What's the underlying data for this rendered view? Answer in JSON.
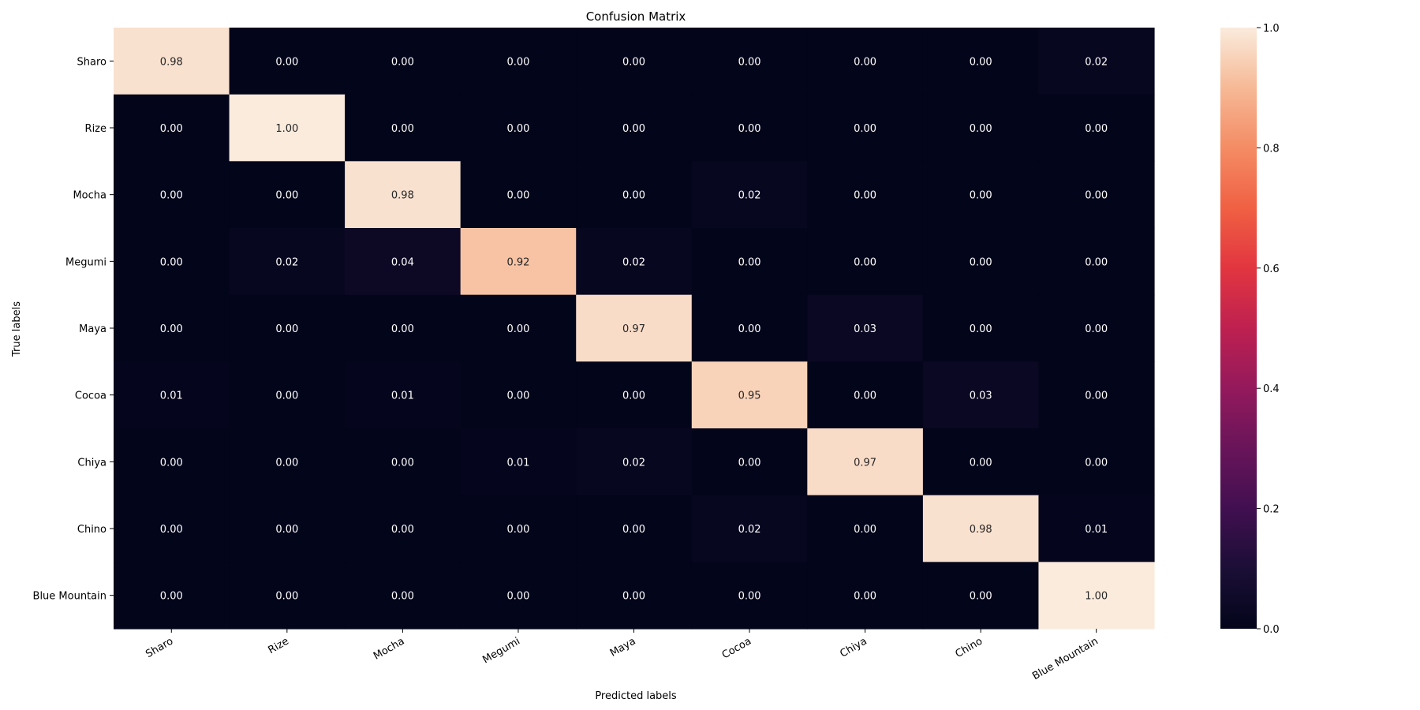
{
  "chart_data": {
    "type": "heatmap",
    "title": "Confusion Matrix",
    "xlabel": "Predicted labels",
    "ylabel": "True labels",
    "x_categories": [
      "Sharo",
      "Rize",
      "Mocha",
      "Megumi",
      "Maya",
      "Cocoa",
      "Chiya",
      "Chino",
      "Blue Mountain"
    ],
    "y_categories": [
      "Sharo",
      "Rize",
      "Mocha",
      "Megumi",
      "Maya",
      "Cocoa",
      "Chiya",
      "Chino",
      "Blue Mountain"
    ],
    "values": [
      [
        0.98,
        0.0,
        0.0,
        0.0,
        0.0,
        0.0,
        0.0,
        0.0,
        0.02
      ],
      [
        0.0,
        1.0,
        0.0,
        0.0,
        0.0,
        0.0,
        0.0,
        0.0,
        0.0
      ],
      [
        0.0,
        0.0,
        0.98,
        0.0,
        0.0,
        0.02,
        0.0,
        0.0,
        0.0
      ],
      [
        0.0,
        0.02,
        0.04,
        0.92,
        0.02,
        0.0,
        0.0,
        0.0,
        0.0
      ],
      [
        0.0,
        0.0,
        0.0,
        0.0,
        0.97,
        0.0,
        0.03,
        0.0,
        0.0
      ],
      [
        0.01,
        0.0,
        0.01,
        0.0,
        0.0,
        0.95,
        0.0,
        0.03,
        0.0
      ],
      [
        0.0,
        0.0,
        0.0,
        0.01,
        0.02,
        0.0,
        0.97,
        0.0,
        0.0
      ],
      [
        0.0,
        0.0,
        0.0,
        0.0,
        0.0,
        0.02,
        0.0,
        0.98,
        0.01
      ],
      [
        0.0,
        0.0,
        0.0,
        0.0,
        0.0,
        0.0,
        0.0,
        0.0,
        1.0
      ]
    ],
    "value_format": "2 decimals",
    "colormap": "rocket",
    "colorbar": {
      "range": [
        0.0,
        1.0
      ],
      "ticks": [
        "0.0",
        "0.2",
        "0.4",
        "0.6",
        "0.8",
        "1.0"
      ],
      "tick_values": [
        0.0,
        0.2,
        0.4,
        0.6,
        0.8,
        1.0
      ]
    },
    "grid": false,
    "xtick_rotation": "rotated 30 degrees"
  }
}
